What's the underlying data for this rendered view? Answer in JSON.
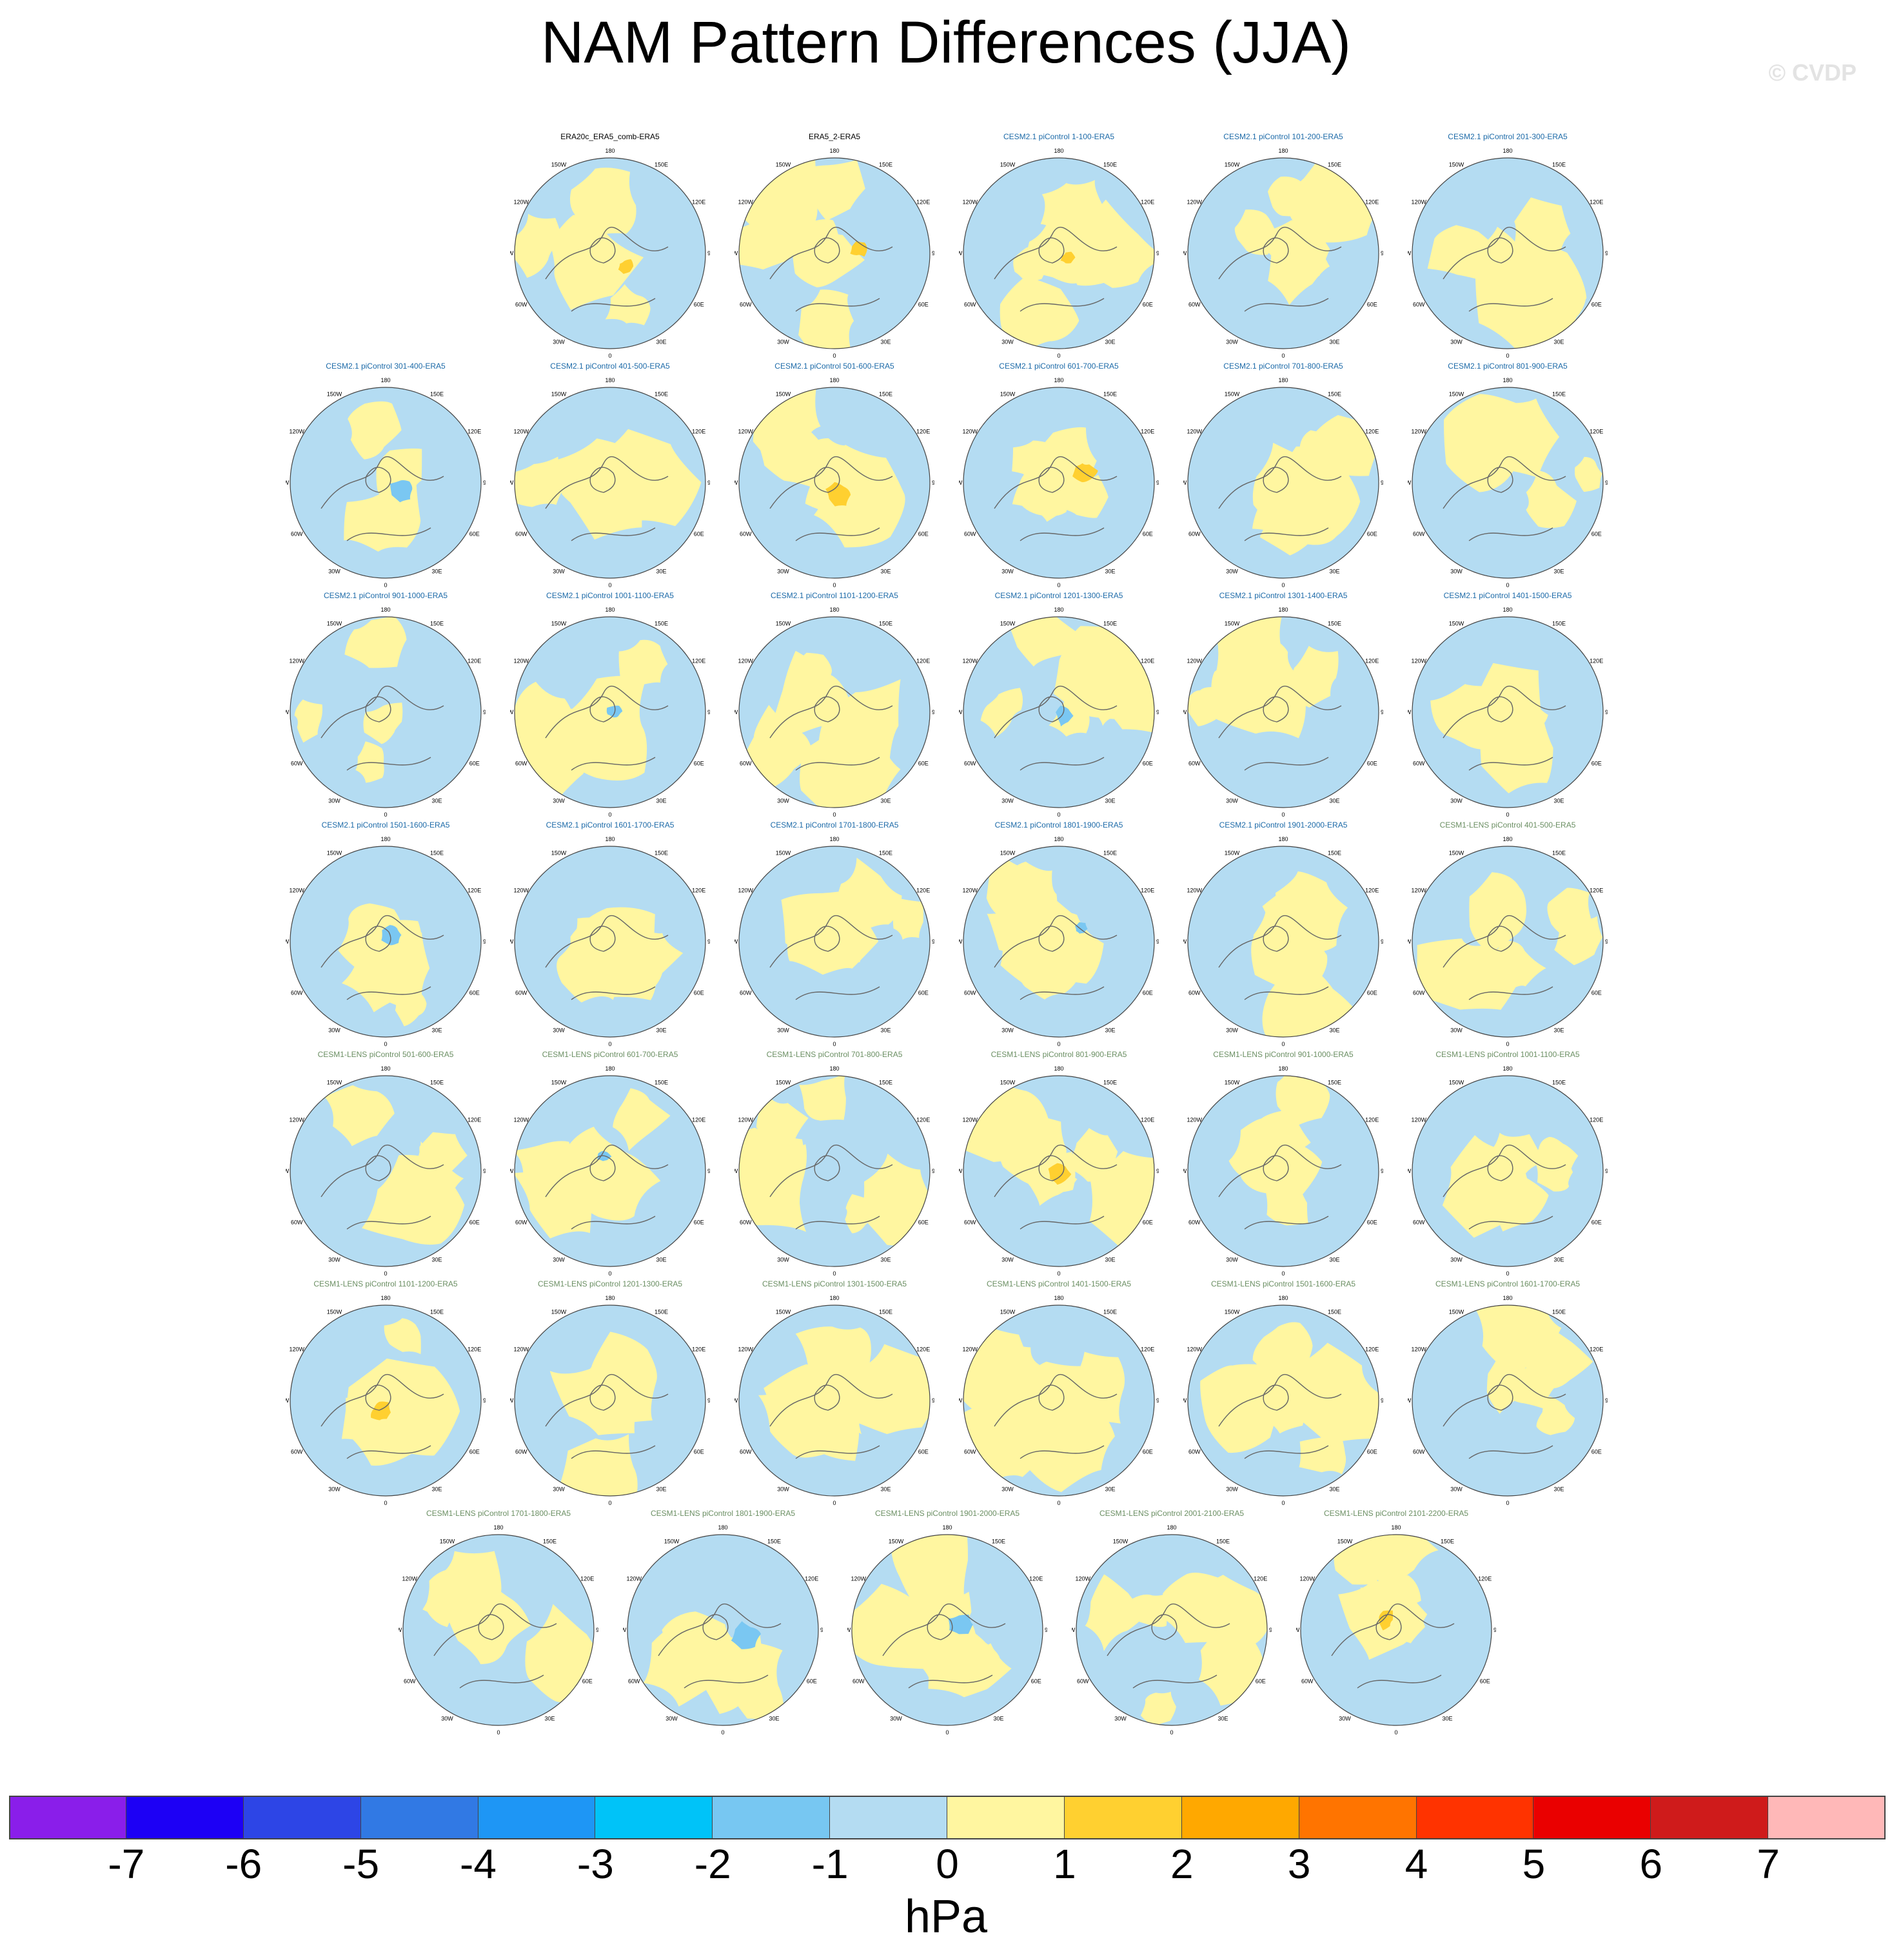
{
  "title": "NAM Pattern Differences (JJA)",
  "watermark": "© CVDP",
  "chart_data": {
    "type": "map-panel-grid",
    "projection": "north polar stereographic",
    "fill_colors": {
      "negative_small": "#b4dcf2",
      "positive_small": "#fff6a0",
      "negative_mid": "#7ac7f2",
      "positive_mid": "#ffd030"
    },
    "longitude_labels": [
      "180",
      "150E",
      "120E",
      "90E",
      "60E",
      "30E",
      "0",
      "30W",
      "60W",
      "90W",
      "120W",
      "150W"
    ],
    "title_colors": {
      "reference": "#000000",
      "cesm2": "#1c6aa8",
      "cesm1": "#6b8f63"
    },
    "rows": [
      [
        "ERA20c_ERA5_comb-ERA5",
        "ERA5_2-ERA5",
        "CESM2.1 piControl 1-100-ERA5",
        "CESM2.1 piControl 101-200-ERA5",
        "CESM2.1 piControl 201-300-ERA5"
      ],
      [
        "CESM2.1 piControl 301-400-ERA5",
        "CESM2.1 piControl 401-500-ERA5",
        "CESM2.1 piControl 501-600-ERA5",
        "CESM2.1 piControl 601-700-ERA5",
        "CESM2.1 piControl 701-800-ERA5",
        "CESM2.1 piControl 801-900-ERA5"
      ],
      [
        "CESM2.1 piControl 901-1000-ERA5",
        "CESM2.1 piControl 1001-1100-ERA5",
        "CESM2.1 piControl 1101-1200-ERA5",
        "CESM2.1 piControl 1201-1300-ERA5",
        "CESM2.1 piControl 1301-1400-ERA5",
        "CESM2.1 piControl 1401-1500-ERA5"
      ],
      [
        "CESM2.1 piControl 1501-1600-ERA5",
        "CESM2.1 piControl 1601-1700-ERA5",
        "CESM2.1 piControl 1701-1800-ERA5",
        "CESM2.1 piControl 1801-1900-ERA5",
        "CESM2.1 piControl 1901-2000-ERA5",
        "CESM1-LENS piControl 401-500-ERA5"
      ],
      [
        "CESM1-LENS piControl 501-600-ERA5",
        "CESM1-LENS piControl 601-700-ERA5",
        "CESM1-LENS piControl 701-800-ERA5",
        "CESM1-LENS piControl 801-900-ERA5",
        "CESM1-LENS piControl 901-1000-ERA5",
        "CESM1-LENS piControl 1001-1100-ERA5"
      ],
      [
        "CESM1-LENS piControl 1101-1200-ERA5",
        "CESM1-LENS piControl 1201-1300-ERA5",
        "CESM1-LENS piControl 1301-1500-ERA5",
        "CESM1-LENS piControl 1401-1500-ERA5",
        "CESM1-LENS piControl 1501-1600-ERA5",
        "CESM1-LENS piControl 1601-1700-ERA5"
      ],
      [
        "CESM1-LENS piControl 1701-1800-ERA5",
        "CESM1-LENS piControl 1801-1900-ERA5",
        "CESM1-LENS piControl 1901-2000-ERA5",
        "CESM1-LENS piControl 2001-2100-ERA5",
        "CESM1-LENS piControl 2101-2200-ERA5"
      ]
    ],
    "colorbar": {
      "units": "hPa",
      "tick_labels": [
        "-7",
        "-6",
        "-5",
        "-4",
        "-3",
        "-2",
        "-1",
        "0",
        "1",
        "2",
        "3",
        "4",
        "5",
        "6",
        "7"
      ],
      "colors": [
        "#8a1eea",
        "#1d00f5",
        "#2d45e6",
        "#3179e4",
        "#1e96f5",
        "#00c3f8",
        "#77c7f2",
        "#b4dcf2",
        "#fff6a0",
        "#ffd030",
        "#ffa800",
        "#ff7400",
        "#ff3300",
        "#ea0000",
        "#cf1b1b",
        "#ffb8b8"
      ]
    }
  }
}
